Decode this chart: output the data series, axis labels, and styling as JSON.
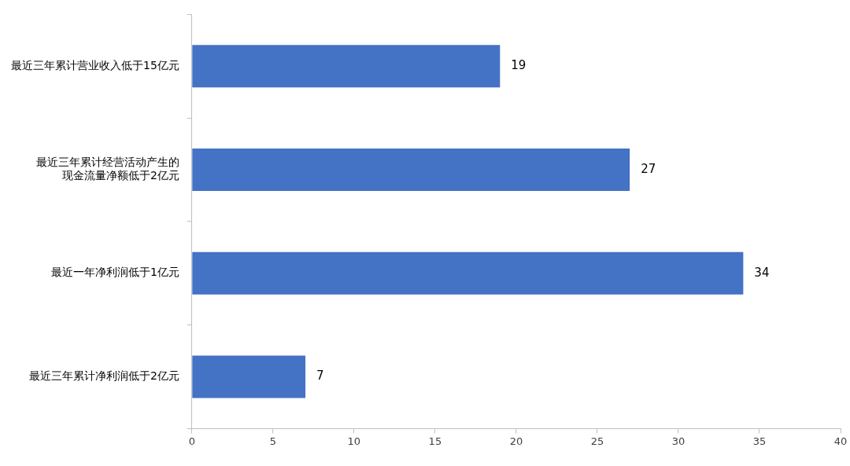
{
  "chart_data": {
    "type": "bar",
    "orientation": "horizontal",
    "categories": [
      "最近三年累计营业收入低于15亿元",
      "最近三年累计经营活动产生的现金流量净额低于2亿元",
      "最近一年净利润低于1亿元",
      "最近三年累计净利润低于2亿元"
    ],
    "values": [
      19,
      27,
      34,
      7
    ],
    "color": "#4472c4",
    "xlim": [
      0,
      40
    ],
    "xticks": [
      0,
      5,
      10,
      15,
      20,
      25,
      30,
      35,
      40
    ],
    "grid": false,
    "data_labels": true
  }
}
